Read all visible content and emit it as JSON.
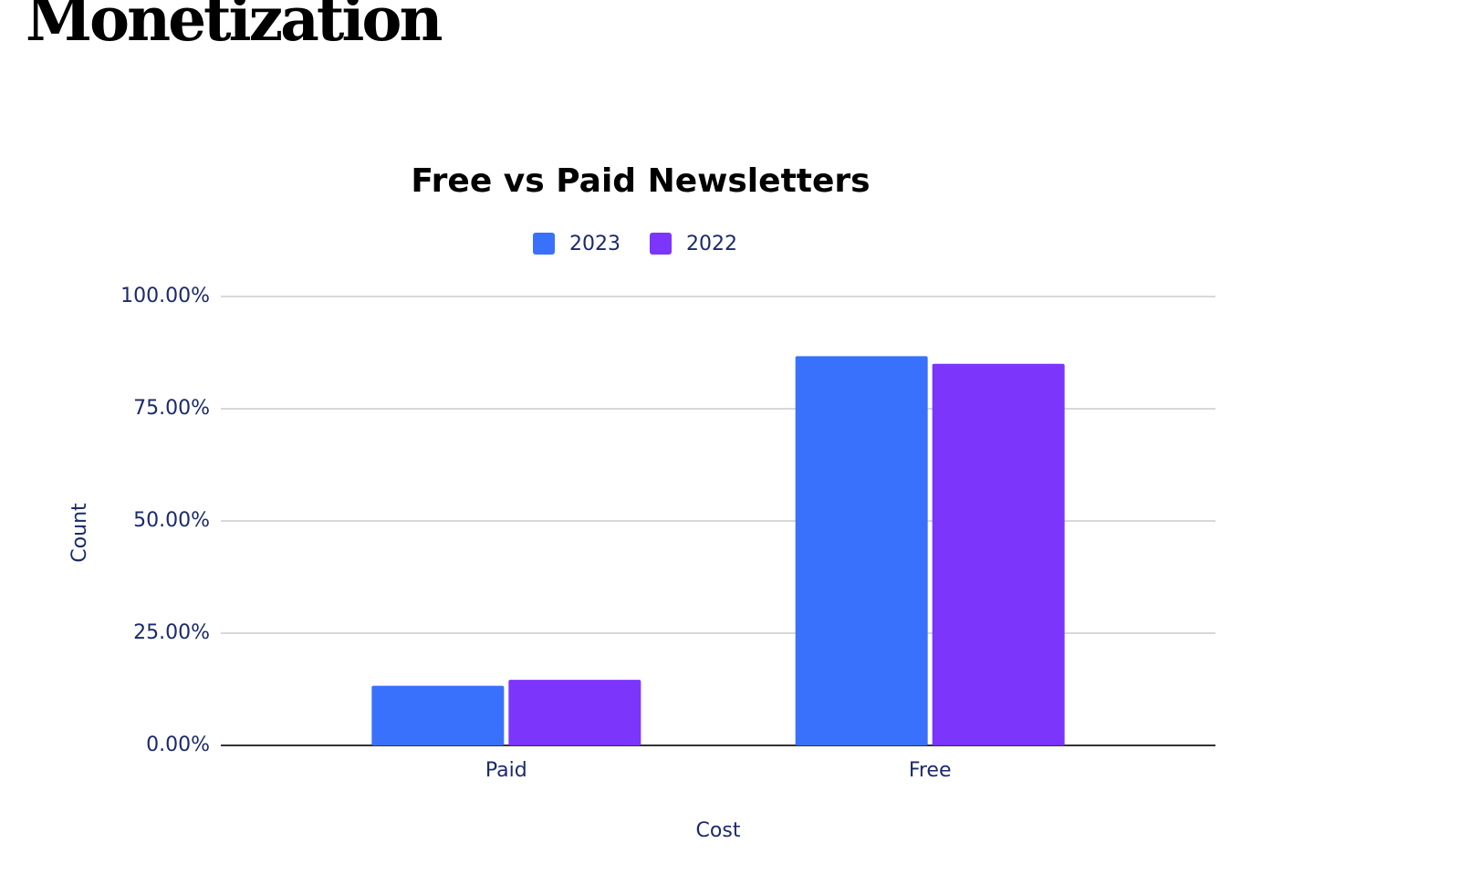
{
  "header": {
    "title": "Monetization"
  },
  "chart_data": {
    "type": "bar",
    "title": "Free vs Paid Newsletters",
    "x_label": "Cost",
    "y_label": "Count",
    "categories": [
      "Paid",
      "Free"
    ],
    "series": [
      {
        "name": "2023",
        "color": "#3a71fc",
        "values": [
          13.3,
          86.7
        ]
      },
      {
        "name": "2022",
        "color": "#7b35fb",
        "values": [
          14.6,
          85.0
        ]
      }
    ],
    "ylim": [
      0,
      100
    ],
    "yticks": [
      {
        "value": 0,
        "label": "0.00%"
      },
      {
        "value": 25,
        "label": "25.00%"
      },
      {
        "value": 50,
        "label": "50.00%"
      },
      {
        "value": 75,
        "label": "75.00%"
      },
      {
        "value": 100,
        "label": "100.00%"
      }
    ],
    "grid": true,
    "legend": "top"
  }
}
